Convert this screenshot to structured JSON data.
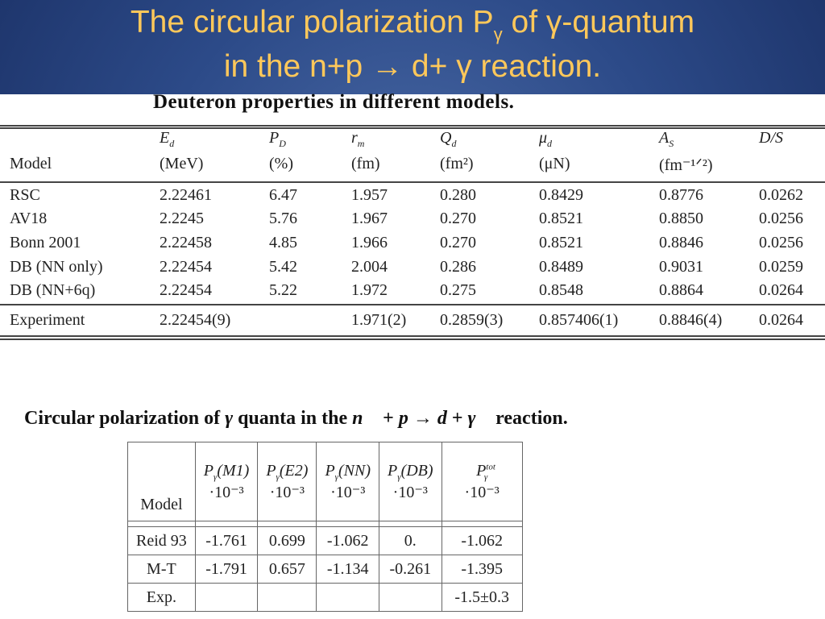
{
  "slide": {
    "title_pre": "The circular polarization P",
    "title_sub": "γ",
    "title_post": " of γ-quantum",
    "title_line2": "in the n+p → d+ γ reaction."
  },
  "table1": {
    "caption": "Deuteron properties in different models.",
    "header_symbols": [
      "E",
      "P",
      "r",
      "Q",
      "μ",
      "A",
      "D/S"
    ],
    "header_subs": [
      "d",
      "D",
      "m",
      "d",
      "d",
      "S"
    ],
    "header_units": [
      "Model",
      "(MeV)",
      "(%)",
      "(fm)",
      "(fm²)",
      "(μN)",
      "(fm⁻¹ᐟ²)"
    ],
    "rows": [
      [
        "RSC",
        "2.22461",
        "6.47",
        "1.957",
        "0.280",
        "0.8429",
        "0.8776",
        "0.0262"
      ],
      [
        "AV18",
        "2.2245",
        "5.76",
        "1.967",
        "0.270",
        "0.8521",
        "0.8850",
        "0.0256"
      ],
      [
        "Bonn 2001",
        "2.22458",
        "4.85",
        "1.966",
        "0.270",
        "0.8521",
        "0.8846",
        "0.0256"
      ],
      [
        "DB (NN only)",
        "2.22454",
        "5.42",
        "2.004",
        "0.286",
        "0.8489",
        "0.9031",
        "0.0259"
      ],
      [
        "DB (NN+6q)",
        "2.22454",
        "5.22",
        "1.972",
        "0.275",
        "0.8548",
        "0.8864",
        "0.0264"
      ],
      [
        "Experiment",
        "2.22454(9)",
        "",
        "1.971(2)",
        "0.2859(3)",
        "0.857406(1)",
        "0.8846(4)",
        "0.0264"
      ]
    ]
  },
  "table2": {
    "caption": "Circular polarization of γ quanta in the n⃗ + p → d + γ⃗ reaction.",
    "model_label": "Model",
    "col_heads": [
      "P",
      "P",
      "P",
      "P",
      "P"
    ],
    "col_args": [
      "(M1)",
      "(E2)",
      "(NN)",
      "(DB)",
      ""
    ],
    "col_sub": "γ",
    "tot_sup": "tot",
    "col_scale": "·10⁻³",
    "rows": [
      [
        "Reid 93",
        "-1.761",
        "0.699",
        "-1.062",
        "0.",
        "-1.062"
      ],
      [
        "M-T",
        "-1.791",
        "0.657",
        "-1.134",
        "-0.261",
        "-1.395"
      ],
      [
        "Exp.",
        "",
        "",
        "",
        "",
        "-1.5±0.3"
      ]
    ]
  }
}
